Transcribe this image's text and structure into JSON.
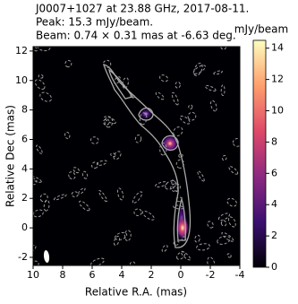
{
  "chart_data": {
    "type": "image",
    "title": "J0007+1027 at 23.88 GHz, 2017-08-11.",
    "annotations": [
      "Peak: 15.3 mJy/beam.",
      "Beam: 0.74 × 0.31 mas at -6.63 deg."
    ],
    "xlabel": "Relative R.A. (mas)",
    "ylabel": "Relative Dec (mas)",
    "xlim": [
      10,
      -4
    ],
    "ylim": [
      -2.55,
      12.3
    ],
    "xticks": [
      10,
      8,
      6,
      4,
      2,
      0,
      -2,
      -4
    ],
    "yticks": [
      -2,
      0,
      2,
      4,
      6,
      8,
      10,
      12
    ],
    "colorbar": {
      "label": "mJy/beam",
      "lim": [
        0,
        14.5
      ],
      "ticks": [
        0,
        2,
        4,
        6,
        8,
        10,
        12,
        14
      ],
      "colormap": "magma"
    }
  }
}
